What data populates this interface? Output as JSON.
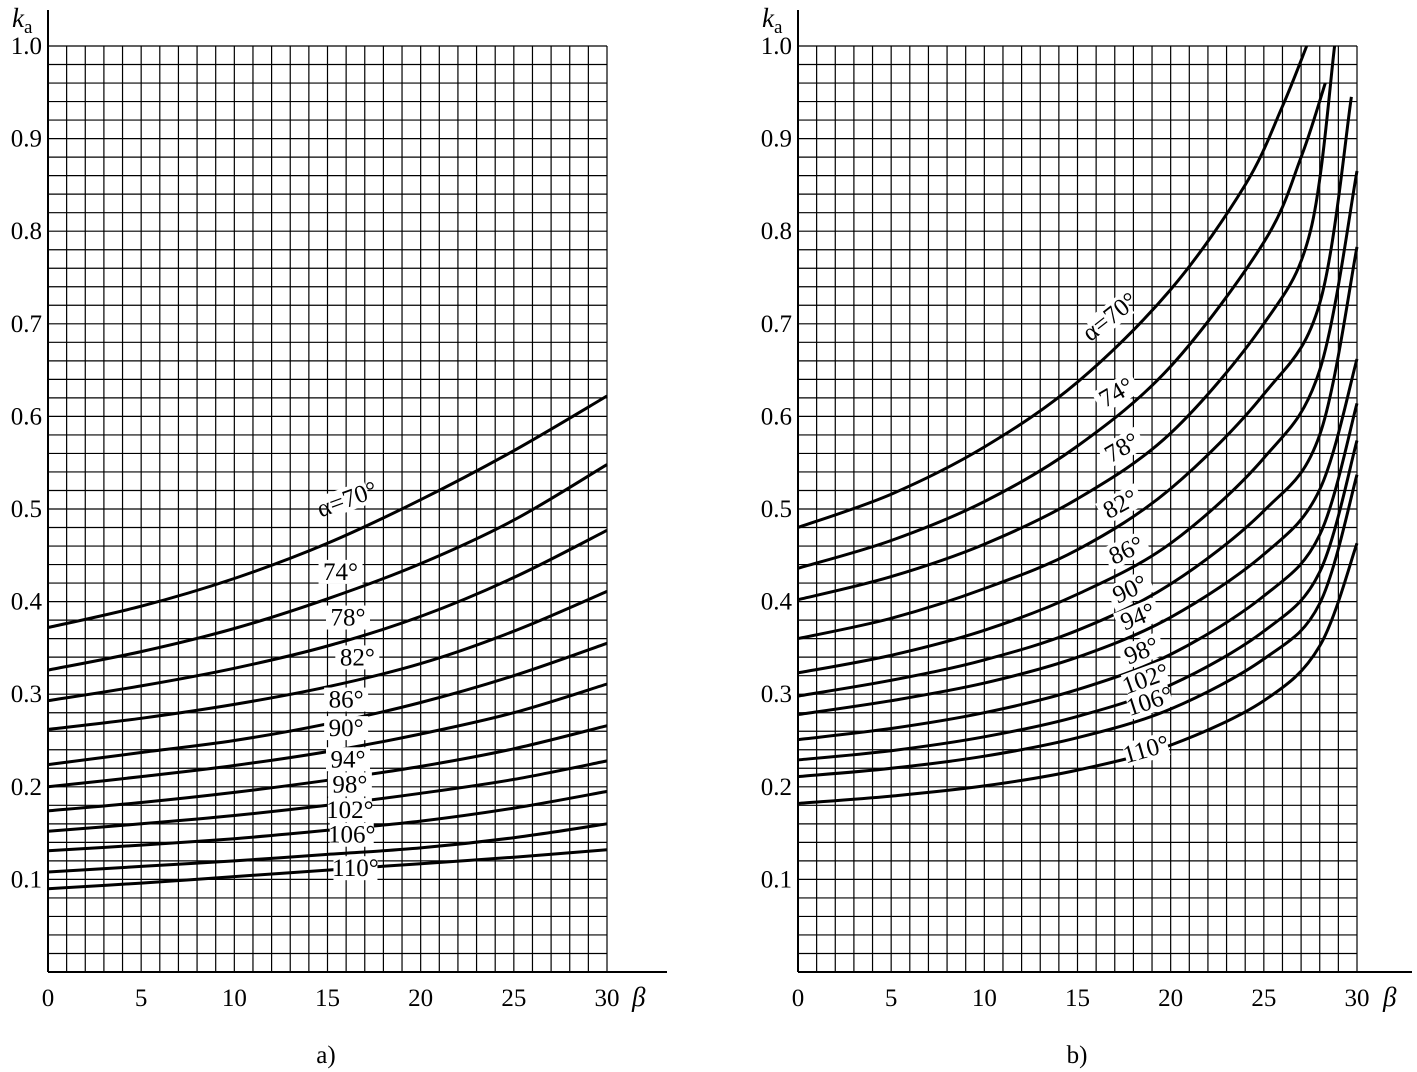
{
  "figure": {
    "panels": [
      {
        "ylabel_main": "k",
        "ylabel_sub": "a",
        "xlabel": "β",
        "caption": "a)"
      },
      {
        "ylabel_main": "k",
        "ylabel_sub": "a",
        "xlabel": "β",
        "caption": "b)"
      }
    ]
  },
  "chart_data": [
    {
      "type": "line",
      "caption": "a)",
      "xlabel": "β",
      "ylabel": "ka",
      "xlim": [
        0,
        30
      ],
      "ylim": [
        0,
        1.0
      ],
      "xticks": [
        "0",
        "5",
        "10",
        "15",
        "20",
        "25",
        "30"
      ],
      "yticks": [
        "0.1",
        "0.2",
        "0.3",
        "0.4",
        "0.5",
        "0.6",
        "0.7",
        "0.8",
        "0.9",
        "1.0"
      ],
      "grid": true,
      "x": [
        0,
        5,
        10,
        15,
        20,
        25,
        30
      ],
      "series": [
        {
          "name": "α=70°",
          "values": [
            0.372,
            0.395,
            0.425,
            0.463,
            0.51,
            0.563,
            0.622
          ]
        },
        {
          "name": "74°",
          "values": [
            0.326,
            0.346,
            0.371,
            0.403,
            0.441,
            0.488,
            0.548
          ]
        },
        {
          "name": "78°",
          "values": [
            0.293,
            0.309,
            0.328,
            0.352,
            0.384,
            0.426,
            0.477
          ]
        },
        {
          "name": "82°",
          "values": [
            0.262,
            0.274,
            0.289,
            0.308,
            0.333,
            0.368,
            0.411
          ]
        },
        {
          "name": "86°",
          "values": [
            0.224,
            0.237,
            0.25,
            0.268,
            0.291,
            0.32,
            0.355
          ]
        },
        {
          "name": "90°",
          "values": [
            0.2,
            0.211,
            0.223,
            0.238,
            0.257,
            0.28,
            0.311
          ]
        },
        {
          "name": "94°",
          "values": [
            0.174,
            0.183,
            0.194,
            0.207,
            0.222,
            0.241,
            0.266
          ]
        },
        {
          "name": "98°",
          "values": [
            0.152,
            0.16,
            0.169,
            0.18,
            0.193,
            0.208,
            0.228
          ]
        },
        {
          "name": "102°",
          "values": [
            0.131,
            0.137,
            0.144,
            0.153,
            0.163,
            0.177,
            0.195
          ]
        },
        {
          "name": "106°",
          "values": [
            0.108,
            0.114,
            0.12,
            0.127,
            0.134,
            0.145,
            0.16
          ]
        },
        {
          "name": "110°",
          "values": [
            0.09,
            0.096,
            0.103,
            0.11,
            0.117,
            0.124,
            0.132
          ]
        }
      ]
    },
    {
      "type": "line",
      "caption": "b)",
      "xlabel": "β",
      "ylabel": "ka",
      "xlim": [
        0,
        30
      ],
      "ylim": [
        0,
        1.0
      ],
      "xticks": [
        "0",
        "5",
        "10",
        "15",
        "20",
        "25",
        "30"
      ],
      "yticks": [
        "0.1",
        "0.2",
        "0.3",
        "0.4",
        "0.5",
        "0.6",
        "0.7",
        "0.8",
        "0.9",
        "1.0"
      ],
      "grid": true,
      "series": [
        {
          "name": "α=70°",
          "x": [
            0,
            5,
            10,
            15,
            20,
            24,
            26,
            27.3
          ],
          "values": [
            0.48,
            0.516,
            0.567,
            0.637,
            0.737,
            0.85,
            0.935,
            1.0
          ]
        },
        {
          "name": "74°",
          "x": [
            0,
            5,
            10,
            15,
            20,
            25,
            27,
            28.3
          ],
          "values": [
            0.436,
            0.466,
            0.508,
            0.568,
            0.654,
            0.788,
            0.88,
            0.96
          ]
        },
        {
          "name": "78°",
          "x": [
            0,
            5,
            10,
            15,
            20,
            25,
            27.5,
            28.8
          ],
          "values": [
            0.402,
            0.427,
            0.462,
            0.511,
            0.582,
            0.7,
            0.8,
            1.0
          ]
        },
        {
          "name": "82°",
          "x": [
            0,
            5,
            10,
            15,
            20,
            25,
            28,
            29.7
          ],
          "values": [
            0.36,
            0.382,
            0.414,
            0.456,
            0.522,
            0.624,
            0.722,
            0.945
          ]
        },
        {
          "name": "86°",
          "x": [
            0,
            5,
            10,
            15,
            20,
            25,
            28,
            30
          ],
          "values": [
            0.323,
            0.342,
            0.369,
            0.408,
            0.463,
            0.555,
            0.65,
            0.865
          ]
        },
        {
          "name": "90°",
          "x": [
            0,
            5,
            10,
            15,
            20,
            25,
            28,
            30
          ],
          "values": [
            0.298,
            0.315,
            0.337,
            0.369,
            0.419,
            0.498,
            0.58,
            0.783
          ]
        },
        {
          "name": "94°",
          "x": [
            0,
            5,
            10,
            15,
            20,
            25,
            28,
            30
          ],
          "values": [
            0.278,
            0.293,
            0.312,
            0.34,
            0.383,
            0.451,
            0.521,
            0.662
          ]
        },
        {
          "name": "98°",
          "x": [
            0,
            5,
            10,
            15,
            20,
            25,
            28,
            30
          ],
          "values": [
            0.251,
            0.263,
            0.28,
            0.305,
            0.343,
            0.406,
            0.472,
            0.614
          ]
        },
        {
          "name": "102°",
          "x": [
            0,
            5,
            10,
            15,
            20,
            25,
            28,
            30
          ],
          "values": [
            0.229,
            0.239,
            0.254,
            0.276,
            0.31,
            0.368,
            0.432,
            0.574
          ]
        },
        {
          "name": "106°",
          "x": [
            0,
            5,
            10,
            15,
            20,
            25,
            28,
            30
          ],
          "values": [
            0.211,
            0.22,
            0.233,
            0.253,
            0.284,
            0.338,
            0.398,
            0.537
          ]
        },
        {
          "name": "110°",
          "x": [
            0,
            5,
            10,
            15,
            20,
            25,
            28,
            30
          ],
          "values": [
            0.182,
            0.19,
            0.201,
            0.218,
            0.245,
            0.293,
            0.352,
            0.463
          ]
        }
      ]
    }
  ]
}
